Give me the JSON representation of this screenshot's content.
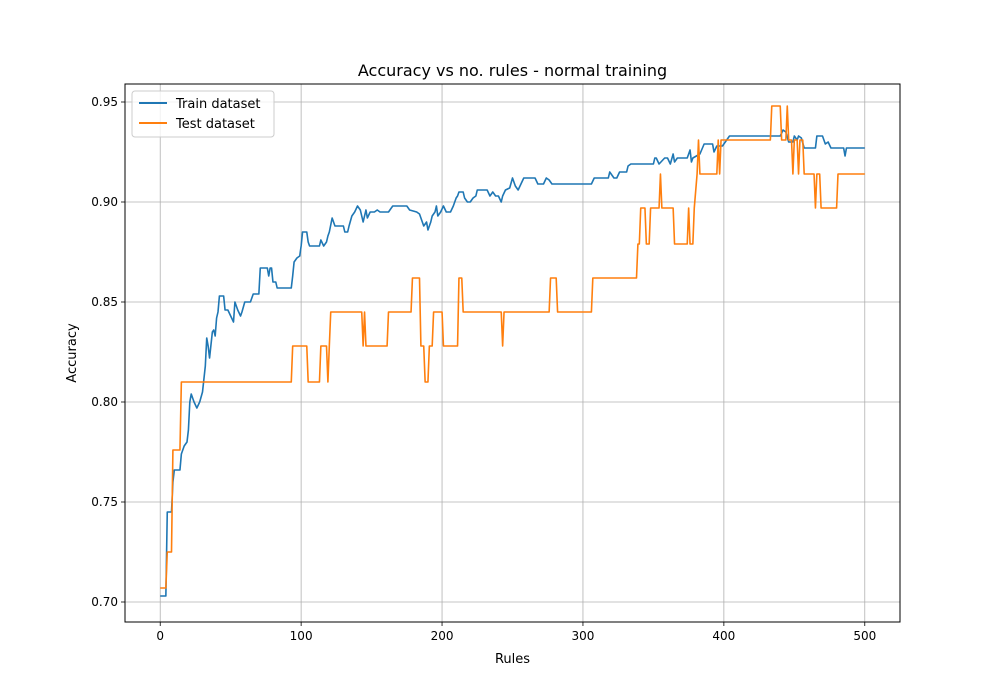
{
  "chart_data": {
    "type": "line",
    "title": "Accuracy vs no. rules - normal training",
    "xlabel": "Rules",
    "ylabel": "Accuracy",
    "xlim": [
      -25,
      525
    ],
    "ylim": [
      0.69,
      0.959
    ],
    "xticks": [
      0,
      100,
      200,
      300,
      400,
      500
    ],
    "xtick_labels": [
      "0",
      "100",
      "200",
      "300",
      "400",
      "500"
    ],
    "yticks": [
      0.7,
      0.75,
      0.8,
      0.85,
      0.9,
      0.95
    ],
    "ytick_labels": [
      "0.70",
      "0.75",
      "0.80",
      "0.85",
      "0.90",
      "0.95"
    ],
    "grid": true,
    "legend_position": "top-left",
    "series": [
      {
        "name": "Train dataset",
        "color": "#1f77b4",
        "points": [
          [
            0,
            0.703
          ],
          [
            4,
            0.703
          ],
          [
            5,
            0.745
          ],
          [
            8,
            0.745
          ],
          [
            9,
            0.76
          ],
          [
            10,
            0.766
          ],
          [
            14,
            0.766
          ],
          [
            15,
            0.774
          ],
          [
            17,
            0.778
          ],
          [
            19,
            0.78
          ],
          [
            20,
            0.786
          ],
          [
            21,
            0.8
          ],
          [
            22,
            0.804
          ],
          [
            24,
            0.8
          ],
          [
            26,
            0.797
          ],
          [
            28,
            0.8
          ],
          [
            30,
            0.805
          ],
          [
            32,
            0.818
          ],
          [
            33,
            0.832
          ],
          [
            34,
            0.828
          ],
          [
            35,
            0.822
          ],
          [
            37,
            0.835
          ],
          [
            38,
            0.836
          ],
          [
            39,
            0.833
          ],
          [
            40,
            0.842
          ],
          [
            41,
            0.845
          ],
          [
            42,
            0.853
          ],
          [
            45,
            0.853
          ],
          [
            46,
            0.846
          ],
          [
            48,
            0.846
          ],
          [
            50,
            0.843
          ],
          [
            52,
            0.84
          ],
          [
            53,
            0.85
          ],
          [
            55,
            0.846
          ],
          [
            57,
            0.843
          ],
          [
            58,
            0.845
          ],
          [
            60,
            0.85
          ],
          [
            64,
            0.85
          ],
          [
            66,
            0.854
          ],
          [
            70,
            0.854
          ],
          [
            71,
            0.867
          ],
          [
            76,
            0.867
          ],
          [
            77,
            0.863
          ],
          [
            78,
            0.867
          ],
          [
            79,
            0.867
          ],
          [
            80,
            0.86
          ],
          [
            82,
            0.86
          ],
          [
            83,
            0.857
          ],
          [
            90,
            0.857
          ],
          [
            93,
            0.857
          ],
          [
            94,
            0.863
          ],
          [
            95,
            0.87
          ],
          [
            97,
            0.872
          ],
          [
            99,
            0.873
          ],
          [
            100,
            0.878
          ],
          [
            101,
            0.885
          ],
          [
            104,
            0.885
          ],
          [
            105,
            0.88
          ],
          [
            106,
            0.878
          ],
          [
            113,
            0.878
          ],
          [
            114,
            0.881
          ],
          [
            116,
            0.878
          ],
          [
            118,
            0.88
          ],
          [
            119,
            0.883
          ],
          [
            120,
            0.885
          ],
          [
            122,
            0.892
          ],
          [
            124,
            0.888
          ],
          [
            130,
            0.888
          ],
          [
            131,
            0.885
          ],
          [
            133,
            0.885
          ],
          [
            134,
            0.888
          ],
          [
            136,
            0.893
          ],
          [
            138,
            0.895
          ],
          [
            140,
            0.898
          ],
          [
            142,
            0.896
          ],
          [
            144,
            0.89
          ],
          [
            146,
            0.896
          ],
          [
            147,
            0.892
          ],
          [
            149,
            0.895
          ],
          [
            152,
            0.895
          ],
          [
            154,
            0.896
          ],
          [
            156,
            0.895
          ],
          [
            162,
            0.895
          ],
          [
            165,
            0.898
          ],
          [
            175,
            0.898
          ],
          [
            177,
            0.896
          ],
          [
            182,
            0.895
          ],
          [
            184,
            0.894
          ],
          [
            187,
            0.888
          ],
          [
            189,
            0.89
          ],
          [
            190,
            0.886
          ],
          [
            192,
            0.89
          ],
          [
            193,
            0.893
          ],
          [
            195,
            0.895
          ],
          [
            196,
            0.898
          ],
          [
            197,
            0.893
          ],
          [
            199,
            0.895
          ],
          [
            201,
            0.898
          ],
          [
            203,
            0.895
          ],
          [
            206,
            0.895
          ],
          [
            208,
            0.898
          ],
          [
            210,
            0.902
          ],
          [
            211,
            0.903
          ],
          [
            212,
            0.905
          ],
          [
            215,
            0.905
          ],
          [
            216,
            0.902
          ],
          [
            218,
            0.9
          ],
          [
            220,
            0.9
          ],
          [
            222,
            0.902
          ],
          [
            224,
            0.903
          ],
          [
            225,
            0.906
          ],
          [
            232,
            0.906
          ],
          [
            234,
            0.903
          ],
          [
            236,
            0.905
          ],
          [
            238,
            0.903
          ],
          [
            240,
            0.903
          ],
          [
            242,
            0.9
          ],
          [
            243,
            0.903
          ],
          [
            245,
            0.906
          ],
          [
            248,
            0.907
          ],
          [
            250,
            0.912
          ],
          [
            252,
            0.908
          ],
          [
            254,
            0.906
          ],
          [
            256,
            0.909
          ],
          [
            258,
            0.912
          ],
          [
            266,
            0.912
          ],
          [
            268,
            0.909
          ],
          [
            272,
            0.909
          ],
          [
            274,
            0.912
          ],
          [
            276,
            0.911
          ],
          [
            278,
            0.909
          ],
          [
            300,
            0.909
          ],
          [
            306,
            0.909
          ],
          [
            308,
            0.912
          ],
          [
            318,
            0.912
          ],
          [
            319,
            0.915
          ],
          [
            322,
            0.912
          ],
          [
            324,
            0.912
          ],
          [
            326,
            0.915
          ],
          [
            331,
            0.915
          ],
          [
            332,
            0.918
          ],
          [
            334,
            0.919
          ],
          [
            350,
            0.919
          ],
          [
            351,
            0.922
          ],
          [
            352,
            0.922
          ],
          [
            354,
            0.919
          ],
          [
            358,
            0.922
          ],
          [
            360,
            0.922
          ],
          [
            362,
            0.919
          ],
          [
            364,
            0.924
          ],
          [
            365,
            0.92
          ],
          [
            367,
            0.922
          ],
          [
            374,
            0.922
          ],
          [
            376,
            0.926
          ],
          [
            377,
            0.92
          ],
          [
            378,
            0.922
          ],
          [
            383,
            0.924
          ],
          [
            386,
            0.929
          ],
          [
            392,
            0.929
          ],
          [
            393,
            0.925
          ],
          [
            395,
            0.928
          ],
          [
            399,
            0.928
          ],
          [
            401,
            0.93
          ],
          [
            404,
            0.933
          ],
          [
            440,
            0.933
          ],
          [
            442,
            0.936
          ],
          [
            444,
            0.935
          ],
          [
            446,
            0.93
          ],
          [
            449,
            0.93
          ],
          [
            450,
            0.933
          ],
          [
            452,
            0.931
          ],
          [
            453,
            0.933
          ],
          [
            455,
            0.932
          ],
          [
            457,
            0.927
          ],
          [
            465,
            0.927
          ],
          [
            466,
            0.933
          ],
          [
            470,
            0.933
          ],
          [
            472,
            0.929
          ],
          [
            474,
            0.93
          ],
          [
            476,
            0.927
          ],
          [
            484,
            0.927
          ],
          [
            485,
            0.927
          ],
          [
            486,
            0.923
          ],
          [
            487,
            0.927
          ],
          [
            500,
            0.927
          ]
        ]
      },
      {
        "name": "Test dataset",
        "color": "#ff7f0e",
        "points": [
          [
            0,
            0.707
          ],
          [
            4,
            0.707
          ],
          [
            5,
            0.725
          ],
          [
            8,
            0.725
          ],
          [
            9,
            0.776
          ],
          [
            14,
            0.776
          ],
          [
            15,
            0.81
          ],
          [
            93,
            0.81
          ],
          [
            94,
            0.828
          ],
          [
            104,
            0.828
          ],
          [
            105,
            0.81
          ],
          [
            113,
            0.81
          ],
          [
            114,
            0.828
          ],
          [
            118,
            0.828
          ],
          [
            119,
            0.81
          ],
          [
            120,
            0.828
          ],
          [
            121,
            0.845
          ],
          [
            143,
            0.845
          ],
          [
            144,
            0.828
          ],
          [
            145,
            0.845
          ],
          [
            146,
            0.828
          ],
          [
            161,
            0.828
          ],
          [
            162,
            0.845
          ],
          [
            178,
            0.845
          ],
          [
            179,
            0.862
          ],
          [
            184,
            0.862
          ],
          [
            185,
            0.828
          ],
          [
            187,
            0.828
          ],
          [
            188,
            0.81
          ],
          [
            190,
            0.81
          ],
          [
            191,
            0.828
          ],
          [
            193,
            0.828
          ],
          [
            194,
            0.845
          ],
          [
            200,
            0.845
          ],
          [
            201,
            0.828
          ],
          [
            211,
            0.828
          ],
          [
            212,
            0.862
          ],
          [
            214,
            0.862
          ],
          [
            215,
            0.845
          ],
          [
            242,
            0.845
          ],
          [
            243,
            0.828
          ],
          [
            244,
            0.845
          ],
          [
            276,
            0.845
          ],
          [
            277,
            0.862
          ],
          [
            281,
            0.862
          ],
          [
            282,
            0.845
          ],
          [
            306,
            0.845
          ],
          [
            307,
            0.862
          ],
          [
            338,
            0.862
          ],
          [
            339,
            0.879
          ],
          [
            340,
            0.879
          ],
          [
            341,
            0.897
          ],
          [
            344,
            0.897
          ],
          [
            345,
            0.879
          ],
          [
            347,
            0.879
          ],
          [
            348,
            0.897
          ],
          [
            354,
            0.897
          ],
          [
            355,
            0.914
          ],
          [
            356,
            0.897
          ],
          [
            363,
            0.897
          ],
          [
            364,
            0.897
          ],
          [
            365,
            0.879
          ],
          [
            374,
            0.879
          ],
          [
            375,
            0.897
          ],
          [
            376,
            0.879
          ],
          [
            378,
            0.879
          ],
          [
            379,
            0.897
          ],
          [
            381,
            0.914
          ],
          [
            382,
            0.931
          ],
          [
            383,
            0.914
          ],
          [
            395,
            0.914
          ],
          [
            396,
            0.931
          ],
          [
            397,
            0.914
          ],
          [
            398,
            0.931
          ],
          [
            433,
            0.931
          ],
          [
            434,
            0.948
          ],
          [
            440,
            0.948
          ],
          [
            441,
            0.931
          ],
          [
            444,
            0.931
          ],
          [
            445,
            0.948
          ],
          [
            446,
            0.931
          ],
          [
            448,
            0.931
          ],
          [
            449,
            0.914
          ],
          [
            450,
            0.931
          ],
          [
            452,
            0.931
          ],
          [
            453,
            0.914
          ],
          [
            454,
            0.931
          ],
          [
            456,
            0.931
          ],
          [
            457,
            0.914
          ],
          [
            464,
            0.914
          ],
          [
            465,
            0.897
          ],
          [
            466,
            0.914
          ],
          [
            468,
            0.914
          ],
          [
            469,
            0.897
          ],
          [
            480,
            0.897
          ],
          [
            481,
            0.914
          ],
          [
            500,
            0.914
          ]
        ]
      }
    ]
  }
}
